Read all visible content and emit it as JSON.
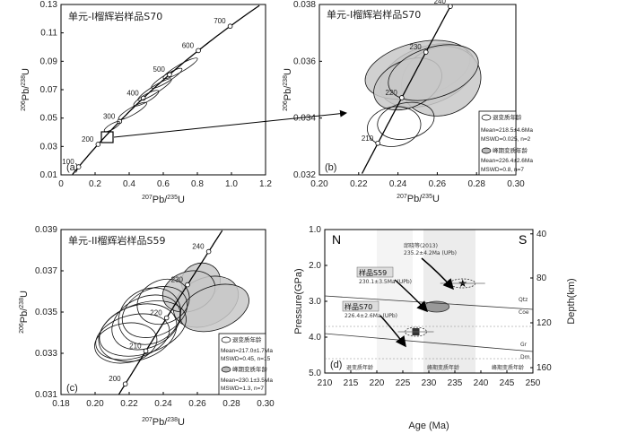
{
  "chart_data": [
    {
      "type": "scatter",
      "panel": "(a)",
      "title": "单元-I榴辉岩样品S70",
      "xlabel": "207Pb/235U",
      "ylabel": "206Pb/238U",
      "xlim": [
        0,
        1.2
      ],
      "ylim": [
        0.01,
        0.13
      ],
      "xticks": [
        "0",
        "0.2",
        "0.4",
        "0.6",
        "0.8",
        "1.0",
        "1.2"
      ],
      "yticks": [
        "0.01",
        "0.03",
        "0.05",
        "0.07",
        "0.09",
        "0.11",
        "0.13"
      ],
      "concordia_labels": [
        "100",
        "200",
        "300",
        "400",
        "500",
        "600",
        "700"
      ]
    },
    {
      "type": "scatter",
      "panel": "(b)",
      "title": "单元-I榴辉岩样品S70",
      "xlabel": "207Pb/235U",
      "ylabel": "206Pb/238U",
      "xlim": [
        0.2,
        0.3
      ],
      "ylim": [
        0.032,
        0.038
      ],
      "xticks": [
        "0.20",
        "0.22",
        "0.24",
        "0.26",
        "0.28",
        "0.30"
      ],
      "yticks": [
        "0.032",
        "0.034",
        "0.036",
        "0.038"
      ],
      "concordia_labels": [
        "210",
        "220",
        "230",
        "240"
      ],
      "legend": [
        {
          "name": "退变质年龄",
          "lines": [
            "Mean=218.5±4.6Ma",
            "MSWD=0.025, n=2"
          ]
        },
        {
          "name": "峰期变质年龄",
          "lines": [
            "Mean=226.4±2.6Ma",
            "MSWD=0.8, n=7"
          ]
        }
      ]
    },
    {
      "type": "scatter",
      "panel": "(c)",
      "title": "单元-II榴辉岩样品S59",
      "xlabel": "207Pb/238U",
      "ylabel": "206Pb/238U",
      "xlim": [
        0.18,
        0.3
      ],
      "ylim": [
        0.031,
        0.039
      ],
      "xticks": [
        "0.18",
        "0.20",
        "0.22",
        "0.24",
        "0.26",
        "0.28",
        "0.30"
      ],
      "yticks": [
        "0.031",
        "0.033",
        "0.035",
        "0.037",
        "0.039"
      ],
      "concordia_labels": [
        "200",
        "210",
        "220",
        "230",
        "240"
      ],
      "legend": [
        {
          "name": "退变质年龄",
          "lines": [
            "Mean=217.0±1.7Ma",
            "MSWD=0.45, n=15"
          ]
        },
        {
          "name": "峰期变质年龄",
          "lines": [
            "Mean=230.1±3.5Ma",
            "MSWD=1.3, n=7"
          ]
        }
      ]
    },
    {
      "type": "line",
      "panel": "(d)",
      "xlabel": "Age (Ma)",
      "ylabel": "Pressure(GPa)",
      "y2label": "Depth(km)",
      "xlim": [
        210,
        250
      ],
      "ylim": [
        1.0,
        5.0
      ],
      "xticks": [
        "210",
        "215",
        "220",
        "225",
        "230",
        "235",
        "240",
        "245",
        "250"
      ],
      "yticks": [
        "1.0",
        "2.0",
        "3.0",
        "4.0",
        "5.0"
      ],
      "y2ticks": [
        "40",
        "80",
        "120",
        "160"
      ],
      "corner_labels": [
        "N",
        "S"
      ],
      "phase_lines": [
        {
          "label": "Qtz/Coe",
          "left": [
            "Qtz",
            "Coe"
          ]
        },
        {
          "label": "Gr/Dm",
          "left": [
            "Gr",
            "Dm"
          ]
        }
      ],
      "annotations": {
        "s59": {
          "name": "样品S59",
          "age": "230.1±3.5Ma (UPb)"
        },
        "s70": {
          "name": "样品S70",
          "age": "226.4±2.6Ma (UPb)"
        },
        "ref": {
          "name": "邱晓等(2013)",
          "age": "235.2±4.2Ma (UPb)"
        },
        "stages": [
          "退变质年龄",
          "峰期变质年龄",
          "峰期变质年龄"
        ]
      },
      "points": [
        {
          "name": "ref",
          "x": 236.5,
          "y": 2.5
        },
        {
          "name": "S59",
          "x": 231.5,
          "y": 3.15
        },
        {
          "name": "S70",
          "x": 227.5,
          "y": 3.85
        }
      ]
    }
  ]
}
